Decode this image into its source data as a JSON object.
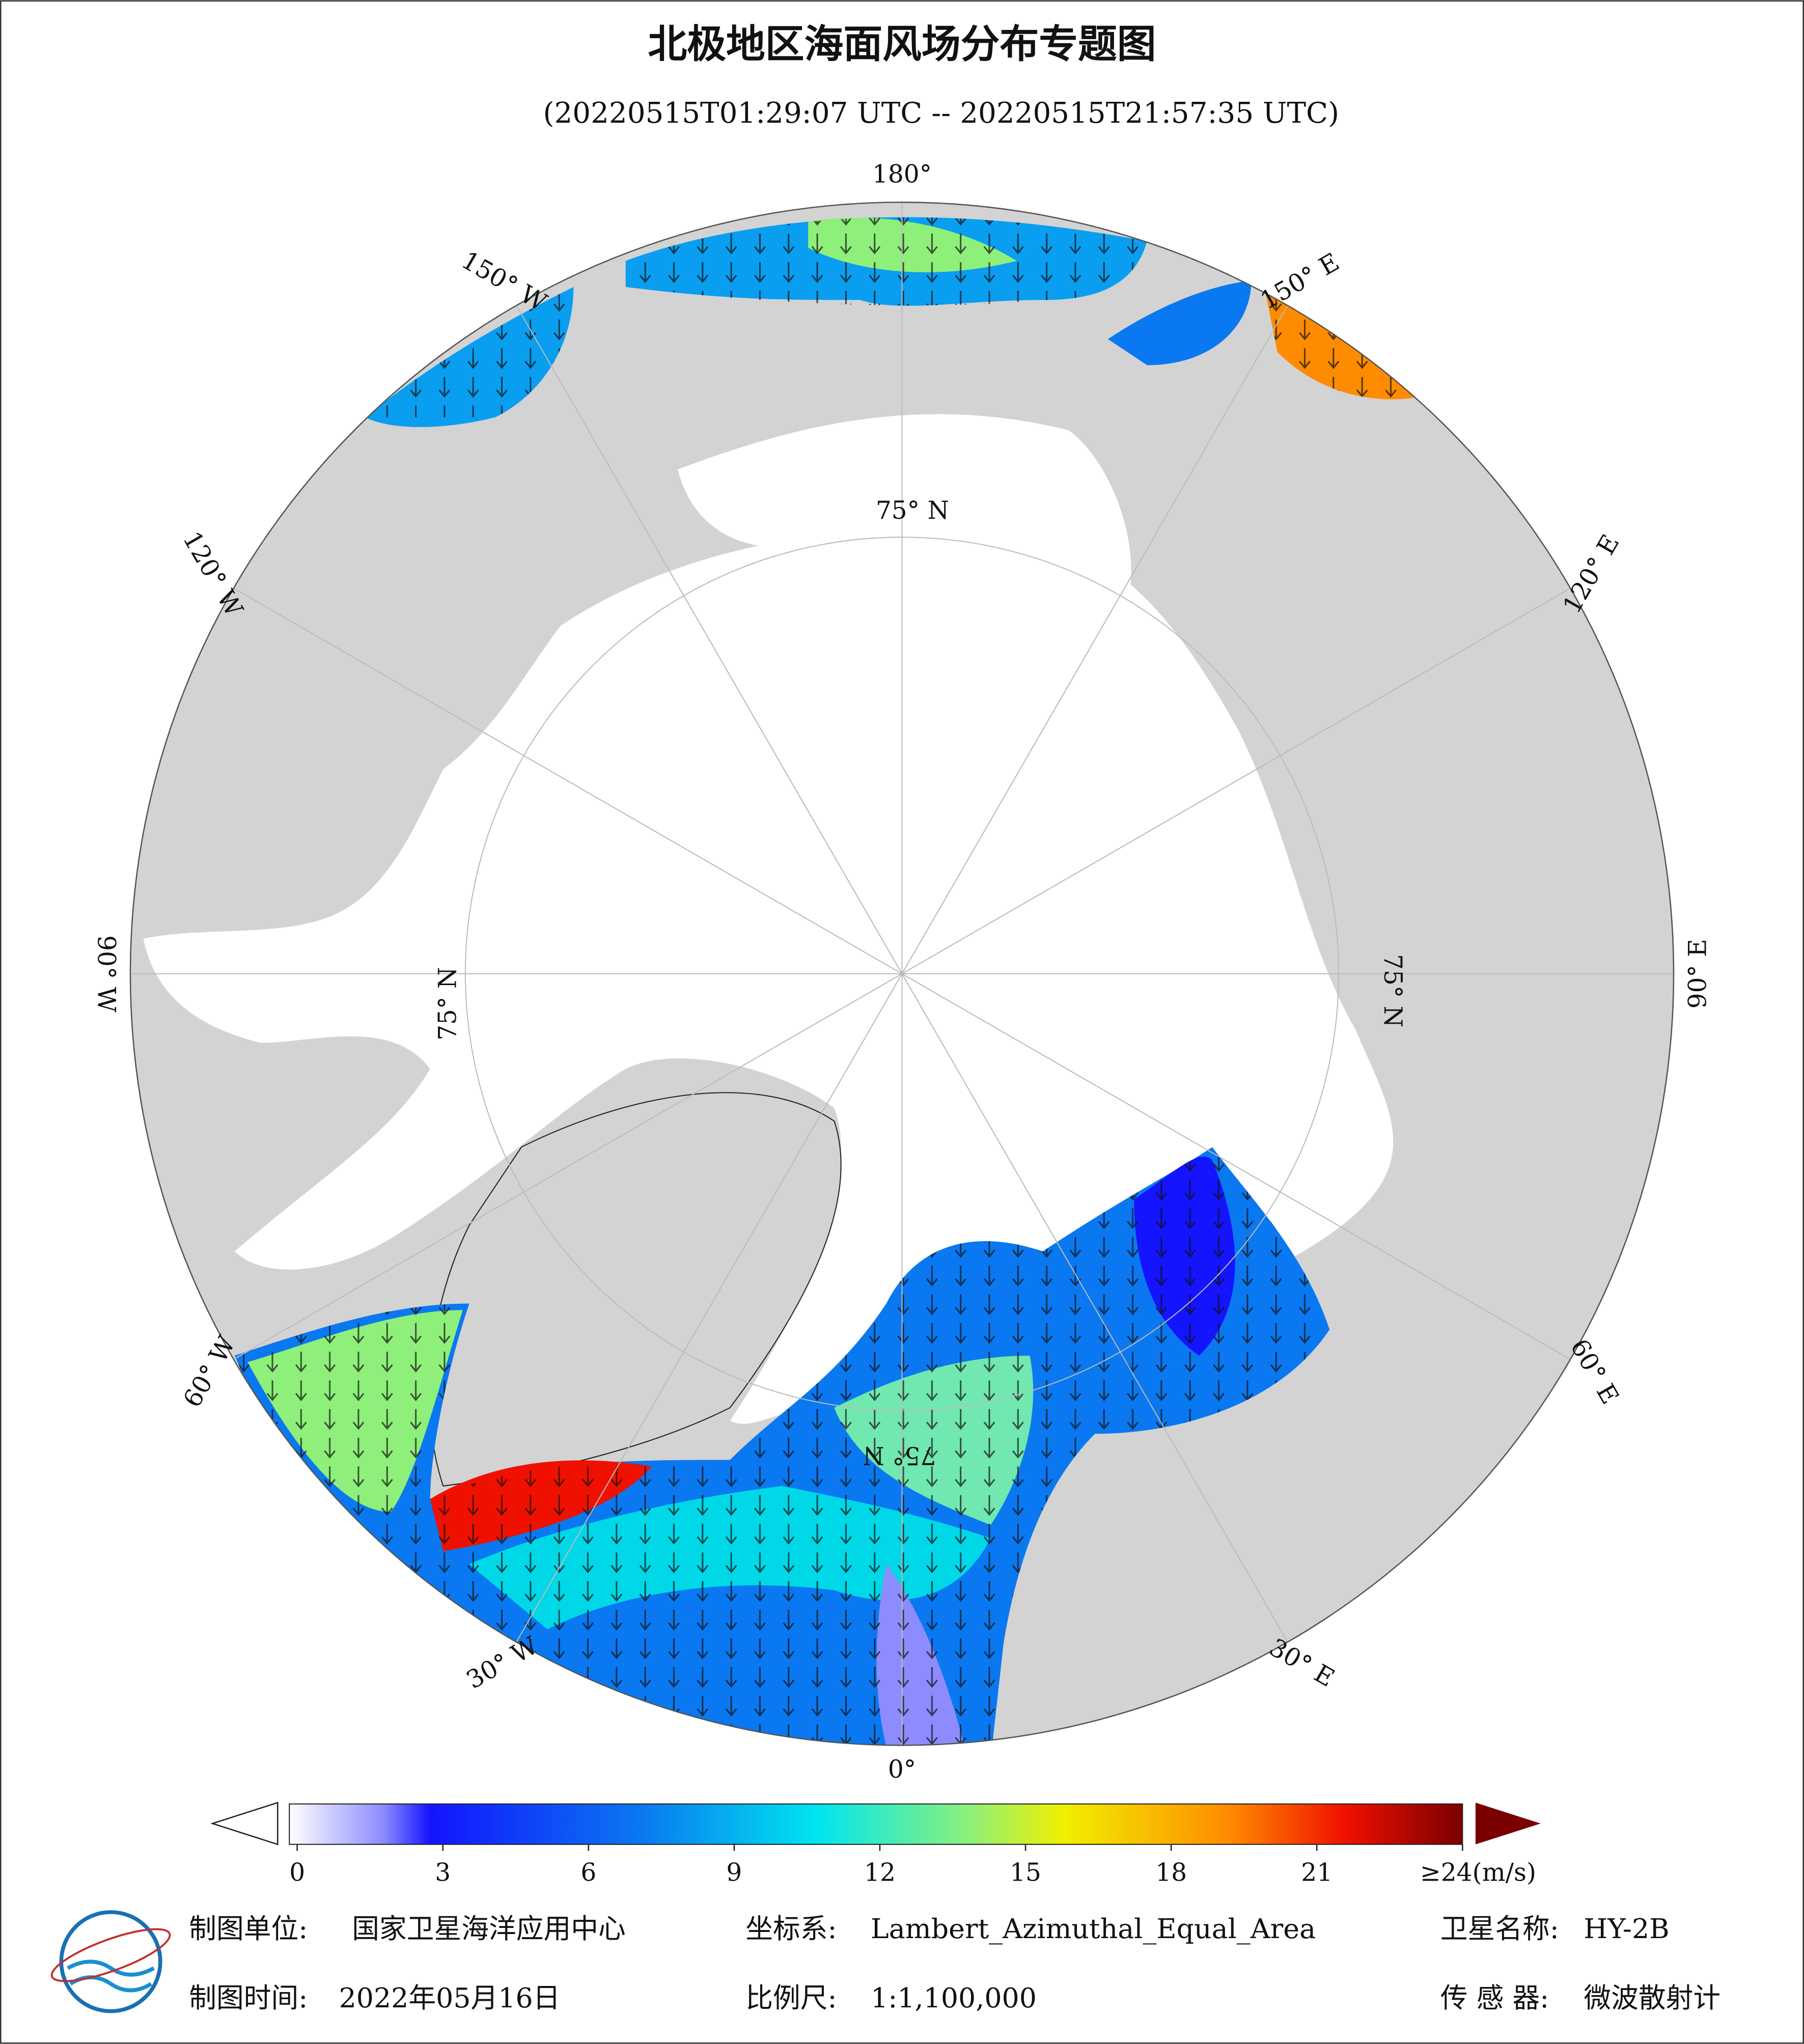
{
  "header": {
    "title": "北极地区海面风场分布专题图",
    "subtitle": "(20220515T01:29:07 UTC -- 20220515T21:57:35 UTC)"
  },
  "map": {
    "lon_labels": [
      "180°",
      "150° E",
      "120° E",
      "90° E",
      "60° E",
      "30° E",
      "0°",
      "30° W",
      "60° W",
      "90° W",
      "120° W",
      "150° W"
    ],
    "lat_labels": [
      "75° N",
      "75° N",
      "75° N",
      "75° N"
    ]
  },
  "colorbar": {
    "ticks": [
      0,
      3,
      6,
      9,
      12,
      15,
      18,
      21,
      {
        "value": 24,
        "label": "≥24(m/s)"
      }
    ],
    "range": [
      0,
      24
    ]
  },
  "footer": {
    "producer_label": "制图单位:",
    "producer": "国家卫星海洋应用中心",
    "date_label": "制图时间:",
    "date": "2022年05月16日",
    "crs_label": "坐标系:",
    "crs": "Lambert_Azimuthal_Equal_Area",
    "scale_label": "比例尺:",
    "scale": "1:1,100,000",
    "satellite_label": "卫星名称:",
    "satellite": "HY-2B",
    "sensor_label": "传 感 器:",
    "sensor": "微波散射计"
  }
}
